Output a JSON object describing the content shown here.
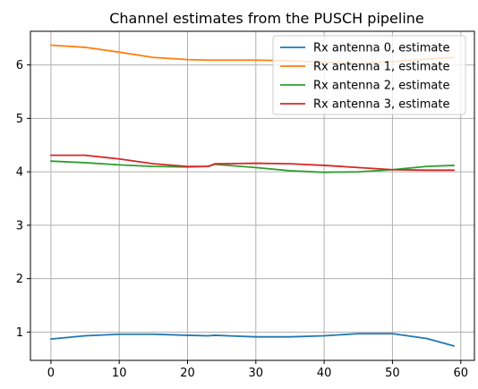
{
  "chart_data": {
    "type": "line",
    "title": "Channel estimates from the PUSCH pipeline",
    "xlabel": "",
    "ylabel": "",
    "xlim": [
      -3,
      62
    ],
    "ylim": [
      0.47,
      6.63
    ],
    "x_ticks": [
      0,
      10,
      20,
      30,
      40,
      50,
      60
    ],
    "y_ticks": [
      1,
      2,
      3,
      4,
      5,
      6
    ],
    "grid": true,
    "legend_position": "top-right",
    "x": [
      0,
      5,
      10,
      15,
      20,
      23,
      24,
      30,
      35,
      40,
      45,
      50,
      55,
      59
    ],
    "series": [
      {
        "name": "Rx antenna 0, estimate",
        "color": "#1f77b4",
        "values": [
          0.87,
          0.93,
          0.96,
          0.96,
          0.94,
          0.93,
          0.94,
          0.91,
          0.91,
          0.93,
          0.97,
          0.97,
          0.88,
          0.74
        ]
      },
      {
        "name": "Rx antenna 1, estimate",
        "color": "#ff7f0e",
        "values": [
          6.37,
          6.33,
          6.24,
          6.14,
          6.1,
          6.09,
          6.09,
          6.09,
          6.08,
          6.05,
          6.03,
          6.06,
          6.11,
          6.14
        ]
      },
      {
        "name": "Rx antenna 2, estimate",
        "color": "#2ca02c",
        "values": [
          4.2,
          4.17,
          4.13,
          4.1,
          4.09,
          4.1,
          4.14,
          4.08,
          4.02,
          3.99,
          4.0,
          4.04,
          4.1,
          4.12
        ]
      },
      {
        "name": "Rx antenna 3, estimate",
        "color": "#d62728",
        "values": [
          4.31,
          4.31,
          4.24,
          4.15,
          4.1,
          4.1,
          4.15,
          4.16,
          4.15,
          4.12,
          4.08,
          4.04,
          4.03,
          4.03
        ]
      }
    ]
  }
}
